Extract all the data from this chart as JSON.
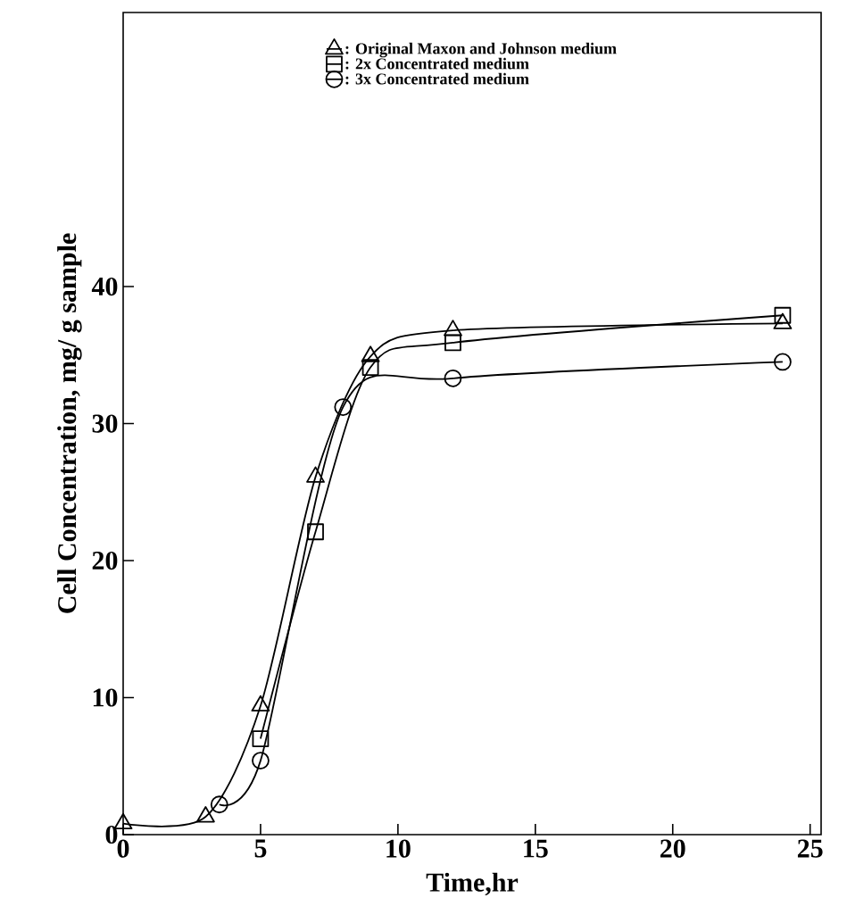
{
  "chart_data": {
    "type": "line",
    "xlabel": "Time,hr",
    "ylabel": "Cell Concentration, mg/ g sample",
    "xlim": [
      0,
      25.4
    ],
    "ylim": [
      0,
      60
    ],
    "xticks": [
      0,
      5,
      10,
      15,
      20,
      25
    ],
    "yticks": [
      0,
      10,
      20,
      30,
      40
    ],
    "legend": "top",
    "grid": false,
    "series": [
      {
        "name": ": Original Maxon and Johnson medium",
        "color": "#000000",
        "marker": "triangle",
        "x": [
          0,
          3,
          5,
          7,
          9,
          12,
          24
        ],
        "values": [
          0.8,
          1.3,
          9.4,
          26.1,
          34.9,
          36.8,
          37.3
        ]
      },
      {
        "name": ": 2x Concentrated medium",
        "color": "#000000",
        "marker": "square",
        "x": [
          5,
          7,
          9,
          12,
          24
        ],
        "values": [
          7.0,
          22.1,
          34.1,
          35.9,
          37.9
        ]
      },
      {
        "name": ": 3x Concentrated medium",
        "color": "#000000",
        "marker": "circle",
        "x": [
          3.5,
          5,
          8,
          12,
          24
        ],
        "values": [
          2.2,
          5.4,
          31.2,
          33.3,
          34.5
        ]
      }
    ]
  }
}
